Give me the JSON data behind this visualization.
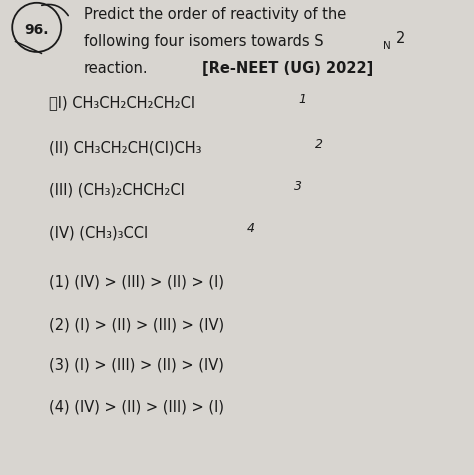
{
  "bg_color": "#d8d5d0",
  "text_color": "#1a1a1a",
  "figsize": [
    4.74,
    4.75
  ],
  "dpi": 100,
  "question_num": "96.",
  "line1": "Predict the order of reactivity of the",
  "line2_main": "following four isomers towards S",
  "line2_sub": "N",
  "line2_sup": "2",
  "line3_normal": "reaction.",
  "line3_bold": "[Re-NEET (UG) 2022]",
  "isomer1_label": "⼘I) CH₃CH₂CH₂CH₂Cl",
  "isomer1_rank": "1",
  "isomer2_label": "(II) CH₃CH₂CH(Cl)CH₃",
  "isomer2_rank": "2",
  "isomer3_label": "(III) (CH₃)₂CHCH₂Cl",
  "isomer3_rank": "3",
  "isomer4_label": "(IV) (CH₃)₃CCl",
  "isomer4_rank": "4",
  "options": [
    "(1) (IV) > (III) > (II) > (I)",
    "(2) (I) > (II) > (III) > (IV)",
    "(3) (I) > (III) > (II) > (IV)",
    "(4) (IV) > (II) > (III) > (I)"
  ]
}
